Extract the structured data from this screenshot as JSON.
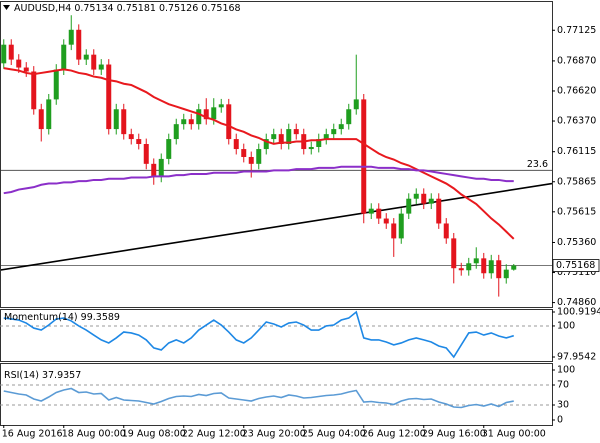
{
  "chart_data": {
    "type": "candlestick",
    "symbol": "AUDUSD,H4",
    "categories": [
      "16 Aug 2016",
      null,
      null,
      null,
      null,
      null,
      null,
      null,
      "18 Aug 00:00",
      null,
      null,
      null,
      null,
      null,
      null,
      null,
      "19 Aug 08:00",
      null,
      null,
      null,
      null,
      null,
      null,
      null,
      "22 Aug 12:00",
      null,
      null,
      null,
      null,
      null,
      null,
      null,
      "23 Aug 20:00",
      null,
      null,
      null,
      null,
      null,
      null,
      null,
      "25 Aug 04:00",
      null,
      null,
      null,
      null,
      null,
      null,
      null,
      "26 Aug 12:00",
      null,
      null,
      null,
      null,
      null,
      null,
      null,
      "29 Aug 16:00",
      null,
      null,
      null,
      null,
      null,
      null,
      null,
      "31 Aug 00:00",
      null,
      null,
      null,
      null
    ],
    "open": [
      0.7685,
      0.77005,
      0.76881,
      0.76815,
      0.76782,
      0.76468,
      0.76303,
      0.7655,
      0.76798,
      0.77005,
      0.77129,
      0.76881,
      0.76922,
      0.76798,
      0.7684,
      0.76303,
      0.76468,
      0.76261,
      0.7622,
      0.76179,
      0.76014,
      0.75906,
      0.76055,
      0.7622,
      0.76344,
      0.76385,
      0.76344,
      0.76468,
      0.76385,
      0.76484,
      0.76509,
      0.7622,
      0.76137,
      0.76071,
      0.76014,
      0.76137,
      0.7622,
      0.76261,
      0.76179,
      0.76303,
      0.76261,
      0.76137,
      0.76154,
      0.7622,
      0.76261,
      0.76303,
      0.76344,
      0.76468,
      0.7655,
      0.756,
      0.75641,
      0.75559,
      0.75518,
      0.75394,
      0.756,
      0.75724,
      0.75765,
      0.75683,
      0.75724,
      0.75518,
      0.75394,
      0.75146,
      0.75129,
      0.75187,
      0.75228,
      0.75104,
      0.75212,
      0.75063,
      0.75134
    ],
    "high": [
      0.7705,
      0.7705,
      0.76926,
      0.7686,
      0.76827,
      0.76513,
      0.76595,
      0.76843,
      0.7705,
      0.7725,
      0.77174,
      0.76967,
      0.76967,
      0.76885,
      0.76885,
      0.76513,
      0.76513,
      0.76306,
      0.76265,
      0.76224,
      0.76059,
      0.761,
      0.76265,
      0.76389,
      0.7643,
      0.7643,
      0.76513,
      0.7656,
      0.7656,
      0.76554,
      0.76554,
      0.76265,
      0.76182,
      0.76116,
      0.76182,
      0.76265,
      0.76306,
      0.76306,
      0.76348,
      0.76348,
      0.76306,
      0.76199,
      0.76265,
      0.76306,
      0.76348,
      0.76389,
      0.76513,
      0.76922,
      0.76595,
      0.75686,
      0.75686,
      0.75604,
      0.75563,
      0.75645,
      0.75769,
      0.7581,
      0.7581,
      0.75769,
      0.75769,
      0.75563,
      0.75439,
      0.75191,
      0.75232,
      0.7532,
      0.75273,
      0.75257,
      0.75257,
      0.75179,
      0.75181
    ],
    "low": [
      0.76805,
      0.76836,
      0.7677,
      0.76737,
      0.76423,
      0.762,
      0.76258,
      0.76505,
      0.76753,
      0.7696,
      0.76836,
      0.76836,
      0.76753,
      0.76753,
      0.76258,
      0.76258,
      0.76216,
      0.76175,
      0.76134,
      0.75969,
      0.7584,
      0.75861,
      0.7601,
      0.76175,
      0.76299,
      0.76299,
      0.76299,
      0.7634,
      0.7634,
      0.76439,
      0.76175,
      0.76092,
      0.76026,
      0.759,
      0.75969,
      0.76092,
      0.76175,
      0.76134,
      0.76134,
      0.76216,
      0.76092,
      0.76092,
      0.76109,
      0.76175,
      0.76216,
      0.76258,
      0.76299,
      0.76423,
      0.7552,
      0.75555,
      0.75514,
      0.75473,
      0.7524,
      0.75349,
      0.75555,
      0.75679,
      0.75638,
      0.75638,
      0.75473,
      0.75349,
      0.7502,
      0.75084,
      0.75084,
      0.75142,
      0.75059,
      0.75059,
      0.7491,
      0.75018,
      0.75126
    ],
    "close": [
      0.77005,
      0.76881,
      0.76815,
      0.76782,
      0.76468,
      0.76303,
      0.7655,
      0.76798,
      0.77005,
      0.77129,
      0.76881,
      0.76922,
      0.76798,
      0.7684,
      0.76303,
      0.76468,
      0.76261,
      0.7622,
      0.76179,
      0.76014,
      0.75906,
      0.76055,
      0.7622,
      0.76344,
      0.76385,
      0.76344,
      0.76468,
      0.76385,
      0.76484,
      0.76509,
      0.7622,
      0.76137,
      0.76071,
      0.76014,
      0.76137,
      0.7622,
      0.76261,
      0.76179,
      0.76303,
      0.76261,
      0.76137,
      0.76154,
      0.7622,
      0.76261,
      0.76303,
      0.76344,
      0.76468,
      0.7655,
      0.756,
      0.75641,
      0.75559,
      0.75518,
      0.75394,
      0.756,
      0.75724,
      0.75765,
      0.75683,
      0.75724,
      0.75518,
      0.75394,
      0.75146,
      0.75129,
      0.75187,
      0.75228,
      0.75104,
      0.75212,
      0.75063,
      0.75134,
      0.75168
    ],
    "colors": {
      "up": "#1f9e1f",
      "down": "#e3141d"
    },
    "ylim": [
      0.7484,
      0.7736
    ],
    "yticks": [
      0.77125,
      {
        "value": 0.7687,
        "label": "0.76870"
      },
      {
        "value": 0.7662,
        "label": "0.76620"
      },
      {
        "value": 0.7637,
        "label": "0.76370"
      },
      0.76115,
      0.75865,
      0.75615,
      {
        "value": 0.7536,
        "label": "0.75360"
      },
      {
        "value": 0.7511,
        "label": "0.75110"
      },
      {
        "value": 0.7486,
        "label": "0.74860"
      }
    ],
    "overlays": [
      {
        "color": "#e8191e",
        "values": [
          0.7681,
          0.768,
          0.7679,
          0.7677,
          0.7676,
          0.7677,
          0.7678,
          0.7679,
          0.768,
          0.7679,
          0.7677,
          0.7676,
          0.7674,
          0.7673,
          0.7671,
          0.767,
          0.7668,
          0.7667,
          0.7664,
          0.7661,
          0.7657,
          0.7654,
          0.7651,
          0.7649,
          0.7647,
          0.7645,
          0.7643,
          0.764,
          0.7638,
          0.7635,
          0.7633,
          0.763,
          0.7628,
          0.7625,
          0.7623,
          0.762,
          0.7618,
          0.7619,
          0.7619,
          0.762,
          0.762,
          0.7621,
          0.7621,
          0.7622,
          0.7622,
          0.7622,
          0.7622,
          0.7622,
          0.7618,
          0.7614,
          0.761,
          0.7607,
          0.7605,
          0.7602,
          0.76,
          0.7597,
          0.7594,
          0.7591,
          0.7588,
          0.7585,
          0.7581,
          0.7576,
          0.7572,
          0.7568,
          0.7562,
          0.7556,
          0.7551,
          0.7545,
          0.7539
        ]
      },
      {
        "color": "#8b2fc9",
        "values": [
          0.7577,
          0.7578,
          0.758,
          0.7581,
          0.7582,
          0.7584,
          0.7585,
          0.7585,
          0.7586,
          0.7586,
          0.7587,
          0.7587,
          0.7588,
          0.7588,
          0.7589,
          0.7589,
          0.7589,
          0.759,
          0.759,
          0.759,
          0.7591,
          0.7591,
          0.7591,
          0.7592,
          0.7592,
          0.7593,
          0.7593,
          0.7593,
          0.7594,
          0.7594,
          0.7594,
          0.7594,
          0.7595,
          0.7595,
          0.7595,
          0.7595,
          0.7596,
          0.7596,
          0.7596,
          0.7597,
          0.7597,
          0.7597,
          0.7598,
          0.7598,
          0.7598,
          0.7599,
          0.7599,
          0.7599,
          0.7599,
          0.7599,
          0.7598,
          0.7598,
          0.7598,
          0.7597,
          0.7597,
          0.7596,
          0.7596,
          0.7595,
          0.7594,
          0.7593,
          0.7592,
          0.7591,
          0.759,
          0.7589,
          0.7589,
          0.7588,
          0.7588,
          0.7587,
          0.7587
        ]
      }
    ],
    "trendline": {
      "color": "#000000",
      "values": [
        0.7513,
        0.7585
      ]
    },
    "level_line": {
      "label": "23.6",
      "value": 0.7596,
      "color": "#555555"
    },
    "indicators": [
      {
        "type": "line",
        "name": "Momentum(14)",
        "color": "#1e88e5",
        "ylim": [
          97.9542,
          100.9194
        ],
        "yticks": [
          100.9194,
          100,
          97.9542
        ],
        "levels": [
          100
        ],
        "values": [
          100.52,
          100.46,
          100.39,
          100.19,
          99.86,
          99.73,
          100.06,
          100.46,
          100.52,
          100.33,
          100.0,
          99.73,
          99.4,
          99.08,
          98.88,
          99.21,
          99.6,
          99.54,
          99.4,
          99.08,
          98.55,
          98.42,
          98.88,
          99.08,
          98.88,
          99.21,
          99.73,
          100.06,
          100.39,
          100.06,
          99.6,
          99.08,
          98.88,
          99.21,
          99.73,
          100.26,
          100.13,
          99.93,
          100.19,
          100.26,
          100.06,
          99.73,
          99.73,
          100.0,
          100.06,
          100.39,
          100.52,
          100.92,
          99.21,
          99.08,
          99.08,
          98.94,
          98.75,
          98.88,
          99.08,
          99.21,
          99.08,
          98.94,
          98.68,
          98.55,
          97.95,
          98.75,
          99.54,
          99.6,
          99.4,
          99.54,
          99.34,
          99.21,
          99.3589
        ]
      },
      {
        "type": "line",
        "name": "RSI(14)",
        "color": "#5b9bd5",
        "ylim": [
          0,
          100
        ],
        "yticks": [
          100,
          70,
          30,
          0
        ],
        "levels": [
          70,
          30
        ],
        "values": [
          58,
          55,
          52,
          50,
          42,
          38,
          46,
          55,
          60,
          63,
          55,
          56,
          52,
          53,
          40,
          45,
          40,
          39,
          38,
          35,
          32,
          37,
          43,
          47,
          48,
          47,
          51,
          49,
          53,
          54,
          44,
          42,
          40,
          38,
          43,
          46,
          48,
          45,
          50,
          48,
          44,
          45,
          47,
          49,
          50,
          52,
          56,
          59,
          36,
          37,
          35,
          34,
          31,
          38,
          42,
          43,
          41,
          42,
          36,
          32,
          26,
          25,
          29,
          31,
          28,
          32,
          27,
          35,
          37.9357
        ]
      }
    ]
  }
}
